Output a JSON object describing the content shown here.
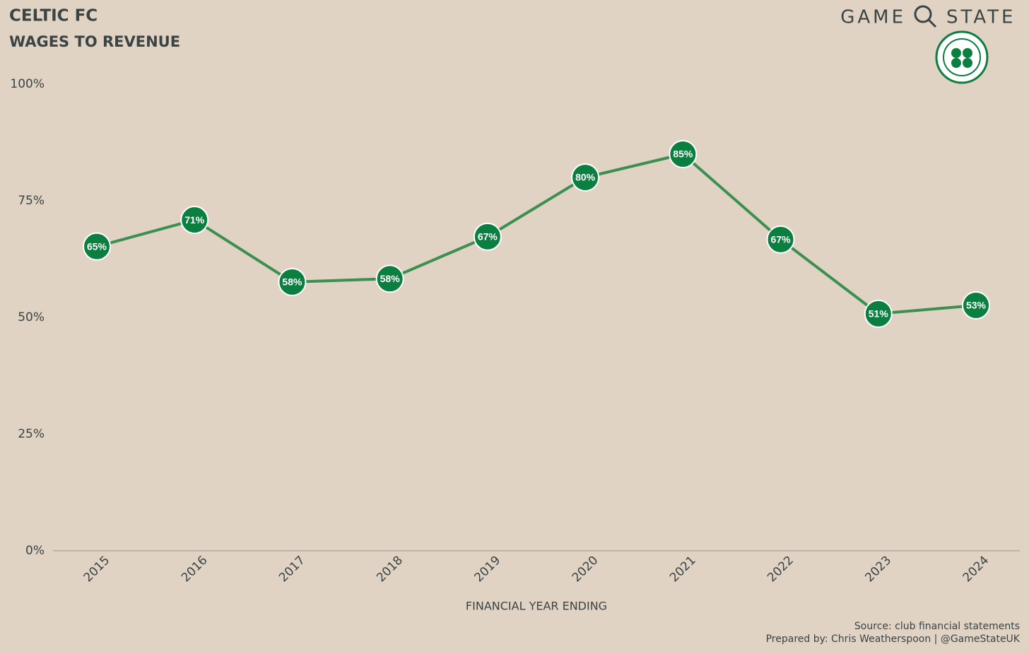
{
  "chart_data": {
    "type": "line",
    "title": "CELTIC FC",
    "subtitle": "WAGES TO REVENUE",
    "brand": [
      "GAME",
      "STATE"
    ],
    "xlabel": "FINANCIAL YEAR ENDING",
    "source": "Source: club financial statements",
    "credit": "Prepared by: Chris Weatherspoon | @GameStateUK",
    "categories": [
      "2015",
      "2016",
      "2017",
      "2018",
      "2019",
      "2020",
      "2021",
      "2022",
      "2023",
      "2024"
    ],
    "values": [
      65.2,
      70.9,
      57.6,
      58.3,
      67.3,
      80.0,
      85.0,
      66.7,
      50.8,
      52.6
    ],
    "value_labels": [
      "65%",
      "71%",
      "58%",
      "58%",
      "67%",
      "80%",
      "85%",
      "67%",
      "51%",
      "53%"
    ],
    "color": "#3b8f50",
    "marker_color": "#0b7f3f",
    "ylim": [
      0,
      100
    ],
    "yticks": [
      {
        "value": 0,
        "label": "0%"
      },
      {
        "value": 25,
        "label": "25%"
      },
      {
        "value": 50,
        "label": "50%"
      },
      {
        "value": 75,
        "label": "75%"
      },
      {
        "value": 100,
        "label": "100%"
      }
    ],
    "grid": false
  }
}
